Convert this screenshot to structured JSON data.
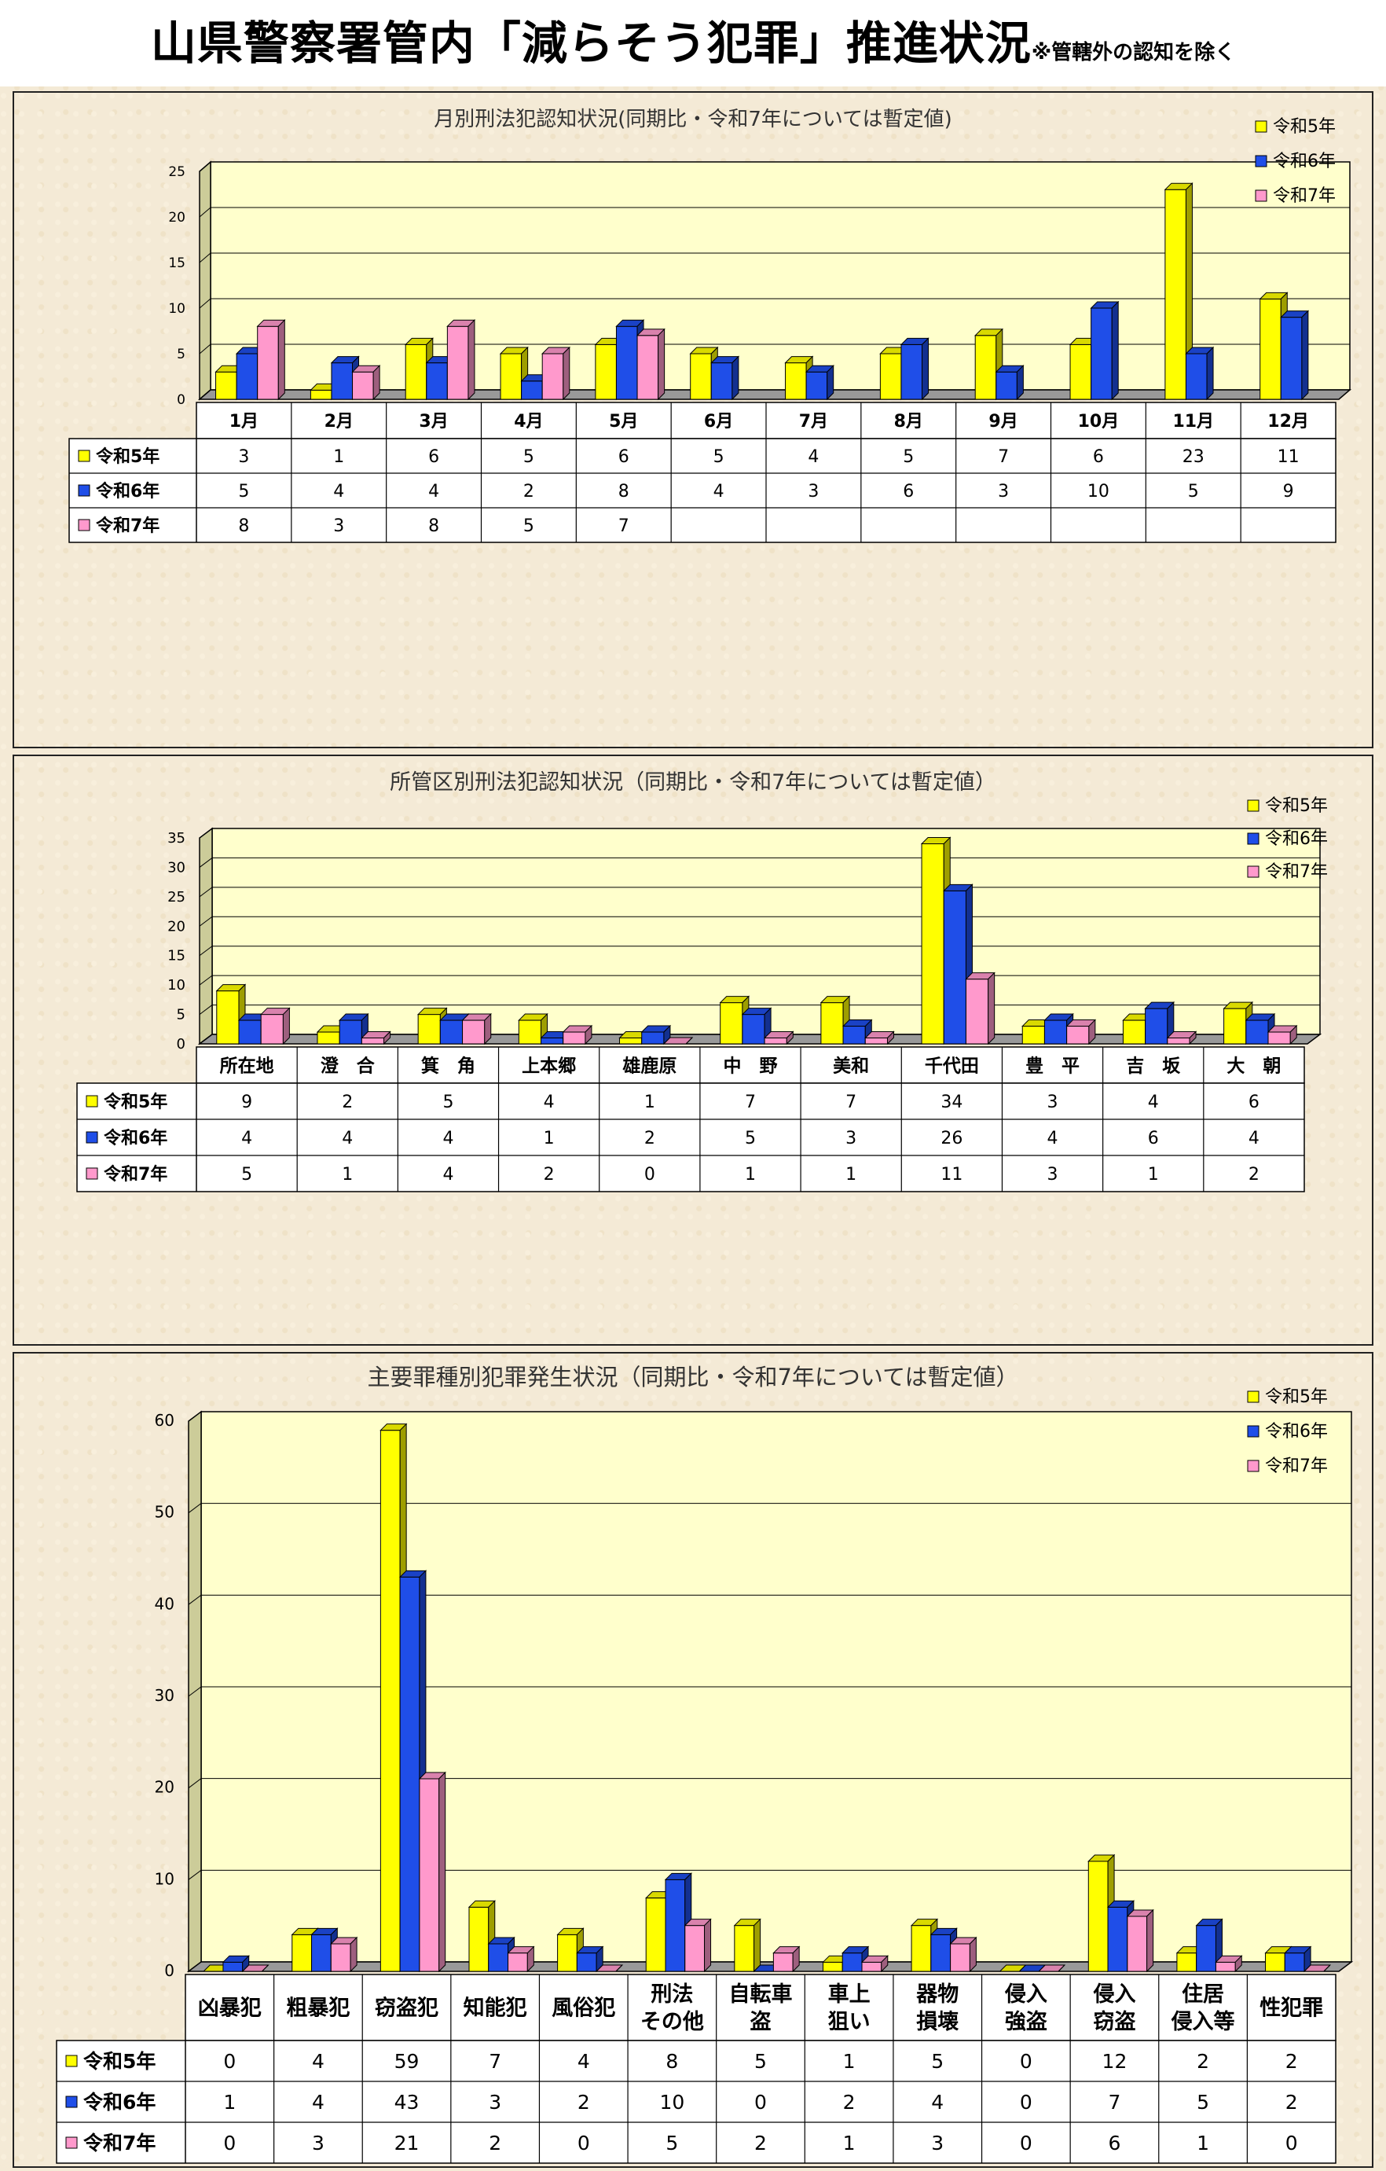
{
  "page": {
    "title": "山県警察署管内「減らそう犯罪」推進状況",
    "note": "※管轄外の認知を除く"
  },
  "chart_data": [
    {
      "type": "bar",
      "title": "月別刑法犯認知状況(同期比・令和7年については暫定値)",
      "categories": [
        "1月",
        "2月",
        "3月",
        "4月",
        "5月",
        "6月",
        "7月",
        "8月",
        "9月",
        "10月",
        "11月",
        "12月"
      ],
      "ylim": [
        0,
        25
      ],
      "yticks": [
        0,
        5,
        10,
        15,
        20,
        25
      ],
      "legend_position": "top-right",
      "grid": true,
      "series": [
        {
          "name": "令和5年",
          "color": "#ffff00",
          "values": [
            3,
            1,
            6,
            5,
            6,
            5,
            4,
            5,
            7,
            6,
            23,
            11
          ]
        },
        {
          "name": "令和6年",
          "color": "#1f4ee8",
          "values": [
            5,
            4,
            4,
            2,
            8,
            4,
            3,
            6,
            3,
            10,
            5,
            9
          ]
        },
        {
          "name": "令和7年",
          "color": "#ff99cc",
          "values": [
            8,
            3,
            8,
            5,
            7,
            null,
            null,
            null,
            null,
            null,
            null,
            null
          ]
        }
      ]
    },
    {
      "type": "bar",
      "title": "所管区別刑法犯認知状況（同期比・令和7年については暫定値）",
      "categories": [
        "所在地",
        "澄　合",
        "箕　角",
        "上本郷",
        "雄鹿原",
        "中　野",
        "美和",
        "千代田",
        "豊　平",
        "吉　坂",
        "大　朝"
      ],
      "ylim": [
        0,
        35
      ],
      "yticks": [
        0,
        5,
        10,
        15,
        20,
        25,
        30,
        35
      ],
      "legend_position": "top-right",
      "grid": true,
      "series": [
        {
          "name": "令和5年",
          "color": "#ffff00",
          "values": [
            9,
            2,
            5,
            4,
            1,
            7,
            7,
            34,
            3,
            4,
            6
          ]
        },
        {
          "name": "令和6年",
          "color": "#1f4ee8",
          "values": [
            4,
            4,
            4,
            1,
            2,
            5,
            3,
            26,
            4,
            6,
            4
          ]
        },
        {
          "name": "令和7年",
          "color": "#ff99cc",
          "values": [
            5,
            1,
            4,
            2,
            0,
            1,
            1,
            11,
            3,
            1,
            2
          ]
        }
      ]
    },
    {
      "type": "bar",
      "title": "主要罪種別犯罪発生状況（同期比・令和7年については暫定値）",
      "categories": [
        "凶暴犯",
        "粗暴犯",
        "窃盗犯",
        "知能犯",
        "風俗犯",
        "刑法\nその他",
        "自転車\n盗",
        "車上\n狙い",
        "器物\n損壊",
        "侵入\n強盗",
        "侵入\n窃盗",
        "住居\n侵入等",
        "性犯罪"
      ],
      "ylim": [
        0,
        60
      ],
      "yticks": [
        0,
        10,
        20,
        30,
        40,
        50,
        60
      ],
      "legend_position": "top-right",
      "grid": true,
      "series": [
        {
          "name": "令和5年",
          "color": "#ffff00",
          "values": [
            0,
            4,
            59,
            7,
            4,
            8,
            5,
            1,
            5,
            0,
            12,
            2,
            2
          ]
        },
        {
          "name": "令和6年",
          "color": "#1f4ee8",
          "values": [
            1,
            4,
            43,
            3,
            2,
            10,
            0,
            2,
            4,
            0,
            7,
            5,
            2
          ]
        },
        {
          "name": "令和7年",
          "color": "#ff99cc",
          "values": [
            0,
            3,
            21,
            2,
            0,
            5,
            2,
            1,
            3,
            0,
            6,
            1,
            0
          ]
        }
      ]
    }
  ]
}
